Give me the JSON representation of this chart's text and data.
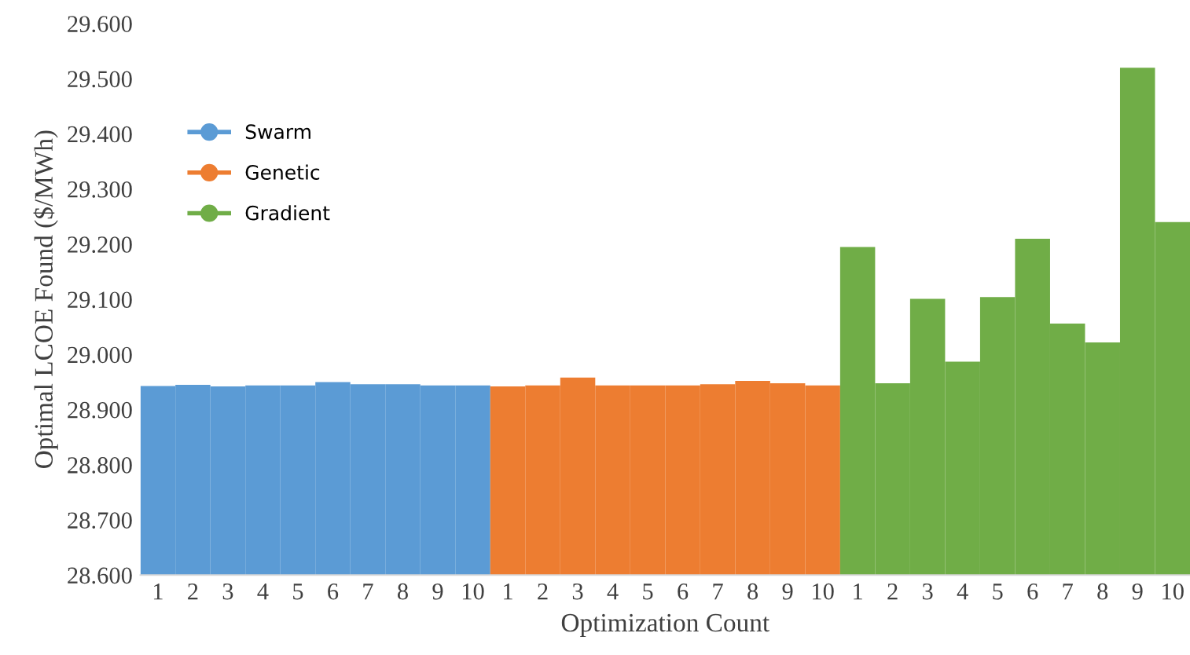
{
  "chart_data": {
    "type": "bar",
    "xlabel": "Optimization Count",
    "ylabel": "Optimal LCOE Found ($/MWh)",
    "categories": [
      "1",
      "2",
      "3",
      "4",
      "5",
      "6",
      "7",
      "8",
      "9",
      "10",
      "1",
      "2",
      "3",
      "4",
      "5",
      "6",
      "7",
      "8",
      "9",
      "10",
      "1",
      "2",
      "3",
      "4",
      "5",
      "6",
      "7",
      "8",
      "9",
      "10"
    ],
    "series": [
      {
        "name": "Swarm",
        "color": "#5b9bd5",
        "values": [
          28.943,
          28.945,
          28.942,
          28.944,
          28.944,
          28.95,
          28.946,
          28.946,
          28.944,
          28.944,
          null,
          null,
          null,
          null,
          null,
          null,
          null,
          null,
          null,
          null,
          null,
          null,
          null,
          null,
          null,
          null,
          null,
          null,
          null,
          null
        ]
      },
      {
        "name": "Genetic",
        "color": "#ed7d31",
        "values": [
          null,
          null,
          null,
          null,
          null,
          null,
          null,
          null,
          null,
          null,
          28.942,
          28.944,
          28.958,
          28.944,
          28.944,
          28.944,
          28.946,
          28.952,
          28.948,
          28.944,
          null,
          null,
          null,
          null,
          null,
          null,
          null,
          null,
          null,
          null
        ]
      },
      {
        "name": "Gradient",
        "color": "#70ad47",
        "values": [
          null,
          null,
          null,
          null,
          null,
          null,
          null,
          null,
          null,
          null,
          null,
          null,
          null,
          null,
          null,
          null,
          null,
          null,
          null,
          null,
          29.195,
          28.948,
          29.101,
          28.987,
          29.104,
          29.21,
          29.056,
          29.022,
          29.52,
          29.24
        ]
      }
    ],
    "ylim": [
      28.6,
      29.6
    ],
    "yticks": [
      {
        "value": 28.6,
        "label": "28.600"
      },
      {
        "value": 28.7,
        "label": "28.700"
      },
      {
        "value": 28.8,
        "label": "28.800"
      },
      {
        "value": 28.9,
        "label": "28.900"
      },
      {
        "value": 29.0,
        "label": "29.000"
      },
      {
        "value": 29.1,
        "label": "29.100"
      },
      {
        "value": 29.2,
        "label": "29.200"
      },
      {
        "value": 29.3,
        "label": "29.300"
      },
      {
        "value": 29.4,
        "label": "29.400"
      },
      {
        "value": 29.5,
        "label": "29.500"
      },
      {
        "value": 29.6,
        "label": "29.600"
      }
    ],
    "grid": false,
    "legend": "top left",
    "marker": "circle"
  }
}
